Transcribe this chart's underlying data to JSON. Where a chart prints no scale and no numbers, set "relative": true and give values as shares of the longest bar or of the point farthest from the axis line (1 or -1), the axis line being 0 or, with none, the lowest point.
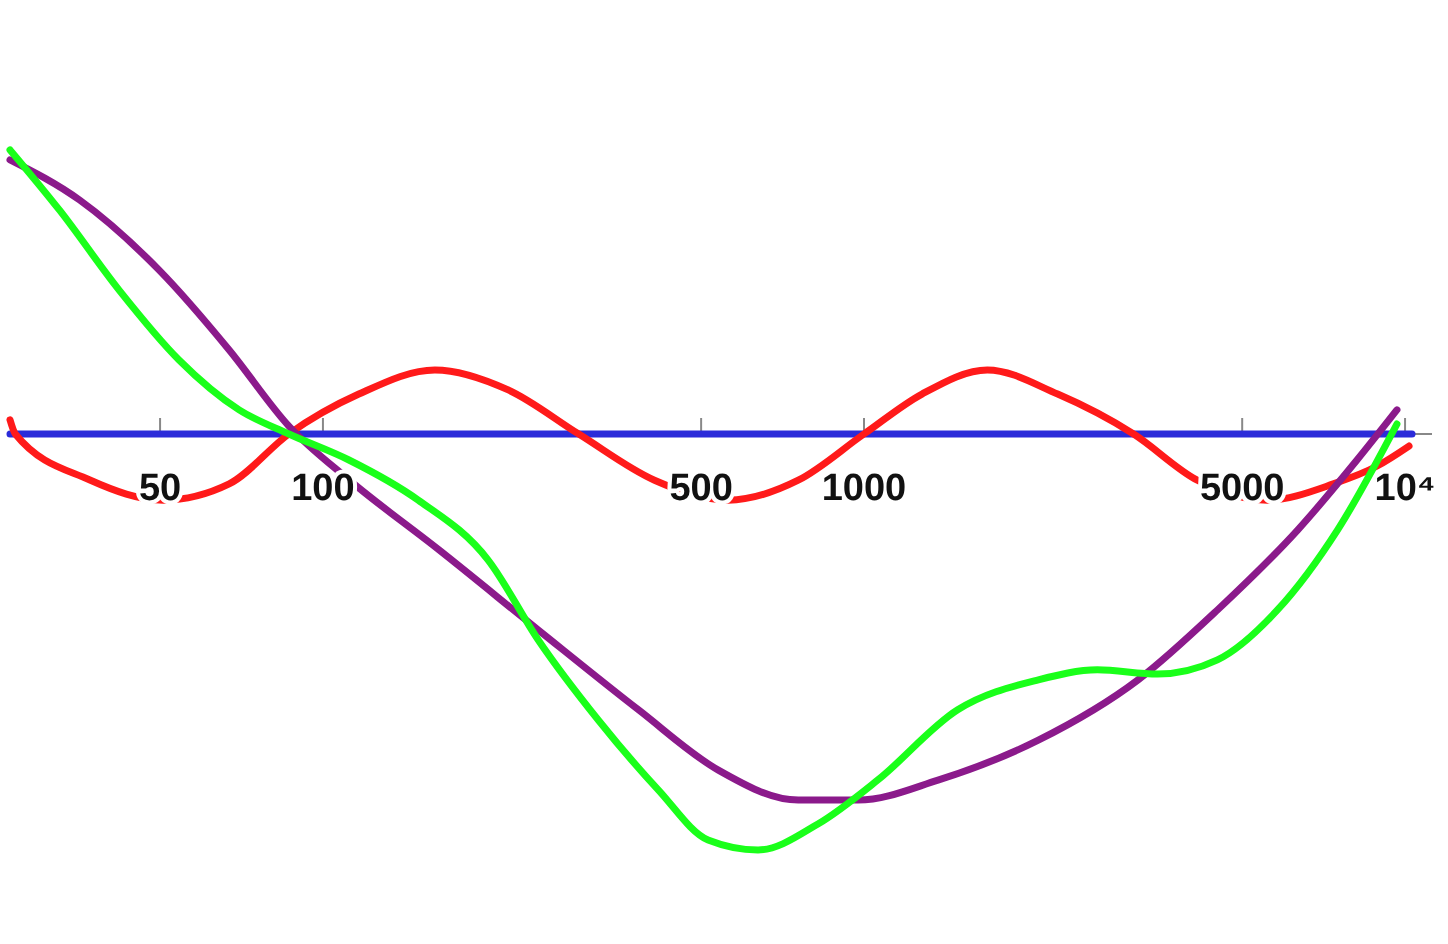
{
  "chart_data": {
    "type": "line",
    "relative": true,
    "log": "x",
    "xlim": [
      26.4,
      10300
    ],
    "xticks": [
      50,
      100,
      500,
      1000,
      5000,
      {
        "value": 10000,
        "label": "10⁴"
      }
    ],
    "grid": false,
    "series": [
      {
        "color": "#2b2bd9",
        "x": [
          26.4,
          10300
        ],
        "values": [
          0,
          0
        ]
      },
      {
        "color": "#ff1a1a",
        "x": [
          26.4,
          27,
          37,
          50.7,
          67.1,
          86.5,
          116.5,
          161,
          220,
          297,
          410,
          561,
          756,
          1000,
          1280,
          1690,
          2280,
          3150,
          4130,
          5560,
          7370,
          8880,
          10170
        ],
        "values": [
          0.034,
          0,
          -0.11,
          -0.159,
          -0.12,
          0,
          0.096,
          0.154,
          0.106,
          0,
          -0.111,
          -0.159,
          -0.111,
          0,
          0.096,
          0.154,
          0.096,
          0,
          -0.111,
          -0.159,
          -0.12,
          -0.077,
          -0.029
        ]
      },
      {
        "color": "#8b1a8b",
        "x": [
          26.4,
          35.5,
          49.8,
          67.1,
          86.5,
          111.7,
          164,
          250,
          383,
          538,
          756,
          975,
          1370,
          2100,
          3210,
          4500,
          6330,
          8150,
          9660
        ],
        "values": [
          0.659,
          0.5625,
          0.394,
          0.202,
          0.019,
          -0.11,
          -0.279,
          -0.471,
          -0.663,
          -0.808,
          -0.88,
          -0.88,
          -0.832,
          -0.736,
          -0.591,
          -0.423,
          -0.231,
          -0.0625,
          0.058
        ]
      },
      {
        "color": "#1aff1a",
        "x": [
          26.4,
          32.6,
          42,
          54.2,
          70,
          86.5,
          111.7,
          150,
          202,
          250,
          323,
          417,
          515,
          637,
          822,
          1060,
          1490,
          2100,
          2700,
          3490,
          4500,
          5810,
          7500,
          9660
        ],
        "values": [
          0.683,
          0.538,
          0.346,
          0.178,
          0.058,
          0,
          -0.0625,
          -0.159,
          -0.303,
          -0.495,
          -0.688,
          -0.856,
          -0.976,
          -1.0,
          -0.9375,
          -0.832,
          -0.663,
          -0.591,
          -0.567,
          -0.577,
          -0.543,
          -0.423,
          -0.231,
          0.024
        ]
      }
    ]
  }
}
